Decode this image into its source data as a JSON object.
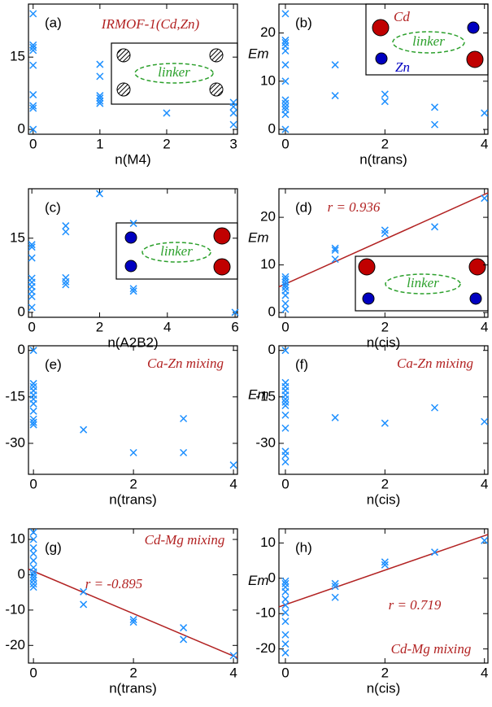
{
  "chart_data": [
    {
      "type": "scatter",
      "panel_label": "(a)",
      "xlabel": "n(M4)",
      "annotations": [
        "IRMOF-1(Cd,Zn)"
      ],
      "inset_label": "linker",
      "x": [
        0,
        0,
        0,
        0,
        0,
        0,
        0,
        0,
        0,
        1,
        1,
        1,
        1,
        1,
        1,
        2,
        3,
        3,
        3,
        3
      ],
      "values": [
        24,
        17.5,
        17,
        16.4,
        13.3,
        7.2,
        4.9,
        4.4,
        0,
        13.5,
        11,
        7,
        6.5,
        5.9,
        5.4,
        3.4,
        5.6,
        4.7,
        3.4,
        1
      ],
      "color": "#1e90ff",
      "xlim": [
        -0.07,
        3.06
      ],
      "ylim": [
        -1,
        26
      ],
      "xticks": [
        0,
        1,
        2,
        3
      ],
      "yticks": [
        0,
        15
      ]
    },
    {
      "type": "scatter",
      "panel_label": "(b)",
      "xlabel": "n(trans)",
      "ylabel": "Em",
      "inset_label": "linker",
      "inset_cd": "Cd",
      "inset_zn": "Zn",
      "x": [
        0,
        0,
        0,
        0,
        0,
        0,
        0,
        0,
        0,
        0,
        0,
        0,
        0,
        1,
        1,
        2,
        2,
        3,
        3,
        4
      ],
      "values": [
        24,
        18.5,
        18,
        17.3,
        16.3,
        13.4,
        10,
        6.1,
        5.4,
        4.7,
        4.1,
        3.1,
        0,
        13.4,
        7,
        7.3,
        5.8,
        4.6,
        1,
        3.4
      ],
      "color": "#1e90ff",
      "xlim": [
        -0.13,
        4.07
      ],
      "ylim": [
        -1,
        26
      ],
      "xticks": [
        0,
        2,
        4
      ],
      "yticks": [
        0,
        10,
        20
      ]
    },
    {
      "type": "scatter",
      "panel_label": "(c)",
      "xlabel": "n(A2B2)",
      "inset_label": "linker",
      "x": [
        0,
        0,
        0,
        0,
        0,
        0,
        0,
        0,
        0,
        1,
        1,
        1,
        1,
        1,
        2,
        3,
        3,
        3,
        6
      ],
      "values": [
        13.7,
        13.2,
        11,
        6.9,
        6.1,
        5.2,
        4.2,
        3.2,
        1,
        17.5,
        16.3,
        7,
        6.2,
        5.6,
        24,
        18,
        4.8,
        4.3,
        0
      ],
      "color": "#1e90ff",
      "xlim": [
        -0.1,
        6.07
      ],
      "ylim": [
        -1,
        25
      ],
      "xticks": [
        0,
        2,
        4,
        6
      ],
      "yticks": [
        0,
        15
      ]
    },
    {
      "type": "scatter",
      "panel_label": "(d)",
      "xlabel": "n(cis)",
      "ylabel": "Em",
      "annotations": [
        "r = 0.936"
      ],
      "inset_label": "linker",
      "x": [
        0,
        0,
        0,
        0,
        0,
        0,
        0,
        0,
        0,
        1,
        1,
        1,
        2,
        2,
        3,
        4
      ],
      "values": [
        7.5,
        7,
        6.4,
        5.8,
        5.3,
        4.6,
        3.6,
        1.9,
        0.7,
        13.5,
        13.1,
        11.2,
        17.3,
        16.6,
        18,
        24
      ],
      "fit": {
        "x": [
          -0.13,
          4.07
        ],
        "values": [
          5.39,
          25.13
        ],
        "color": "#b22222"
      },
      "color": "#1e90ff",
      "xlim": [
        -0.13,
        4.07
      ],
      "ylim": [
        -1,
        26
      ],
      "xticks": [
        0,
        2,
        4
      ],
      "yticks": [
        0,
        10,
        20
      ]
    },
    {
      "type": "scatter",
      "panel_label": "(e)",
      "xlabel": "n(trans)",
      "annotations": [
        "Ca-Zn mixing"
      ],
      "x": [
        0,
        0,
        0,
        0,
        0,
        0,
        0,
        0,
        0,
        0,
        0,
        1,
        2,
        3,
        3,
        4
      ],
      "values": [
        0,
        -10.7,
        -11.7,
        -13,
        -14.4,
        -15.7,
        -17.2,
        -19.6,
        -22.2,
        -23.2,
        -24,
        -25.6,
        -33,
        -22,
        -33,
        -37
      ],
      "color": "#1e90ff",
      "xlim": [
        -0.1,
        4.08
      ],
      "ylim": [
        -40,
        1.5
      ],
      "xticks": [
        0,
        2,
        4
      ],
      "yticks": [
        0,
        -15,
        -30
      ]
    },
    {
      "type": "scatter",
      "panel_label": "(f)",
      "xlabel": "n(cis)",
      "ylabel": "Em",
      "annotations": [
        "Ca-Zn mixing"
      ],
      "x": [
        0,
        0,
        0,
        0,
        0,
        0,
        0,
        0,
        0,
        0,
        0,
        0,
        0,
        1,
        2,
        3,
        4
      ],
      "values": [
        0,
        -10.4,
        -11.7,
        -13,
        -14.4,
        -15.7,
        -16.7,
        -17.8,
        -20.9,
        -25.1,
        -32.6,
        -33.9,
        -36,
        -21.7,
        -23.5,
        -18.5,
        -23
      ],
      "color": "#1e90ff",
      "xlim": [
        -0.13,
        4.07
      ],
      "ylim": [
        -40,
        1.5
      ],
      "xticks": [
        0,
        2,
        4
      ],
      "yticks": [
        0,
        -15,
        -30
      ]
    },
    {
      "type": "scatter",
      "panel_label": "(g)",
      "xlabel": "n(trans)",
      "annotations": [
        "Cd-Mg mixing",
        "r = -0.895"
      ],
      "x": [
        0,
        0,
        0,
        0,
        0,
        0,
        0,
        0,
        0,
        0,
        0,
        0,
        1,
        1,
        2,
        2,
        3,
        3,
        4
      ],
      "values": [
        12,
        10,
        7.6,
        6,
        4,
        2,
        0.8,
        0,
        -0.8,
        -1.6,
        -2.6,
        -3.5,
        -4.8,
        -8.4,
        -12.7,
        -13.4,
        -15,
        -18.3,
        -22.9
      ],
      "fit": {
        "x": [
          -0.1,
          4.08
        ],
        "values": [
          1.6,
          -23.5
        ],
        "color": "#b22222"
      },
      "color": "#1e90ff",
      "xlim": [
        -0.1,
        4.08
      ],
      "ylim": [
        -25,
        13
      ],
      "xticks": [
        0,
        2,
        4
      ],
      "yticks": [
        10,
        0,
        -10,
        -20
      ]
    },
    {
      "type": "scatter",
      "panel_label": "(h)",
      "xlabel": "n(cis)",
      "ylabel": "Em",
      "annotations": [
        "r = 0.719",
        "Cd-Mg mixing"
      ],
      "x": [
        0,
        0,
        0,
        0,
        0,
        0,
        0,
        0,
        0,
        0,
        0,
        1,
        1,
        1,
        2,
        2,
        3,
        4
      ],
      "values": [
        -0.8,
        -1.5,
        -2.5,
        -3.8,
        -5.9,
        -7.6,
        -9.7,
        -12.2,
        -16,
        -18.6,
        -21.1,
        -1.5,
        -2.3,
        -5.4,
        4.6,
        3.8,
        7.4,
        10.7
      ],
      "fit": {
        "x": [
          -0.13,
          4.07
        ],
        "values": [
          -8.1,
          12.4
        ],
        "color": "#b22222"
      },
      "color": "#1e90ff",
      "xlim": [
        -0.13,
        4.07
      ],
      "ylim": [
        -24,
        14
      ],
      "xticks": [
        0,
        2,
        4
      ],
      "yticks": [
        10,
        0,
        -10,
        -20
      ]
    }
  ]
}
